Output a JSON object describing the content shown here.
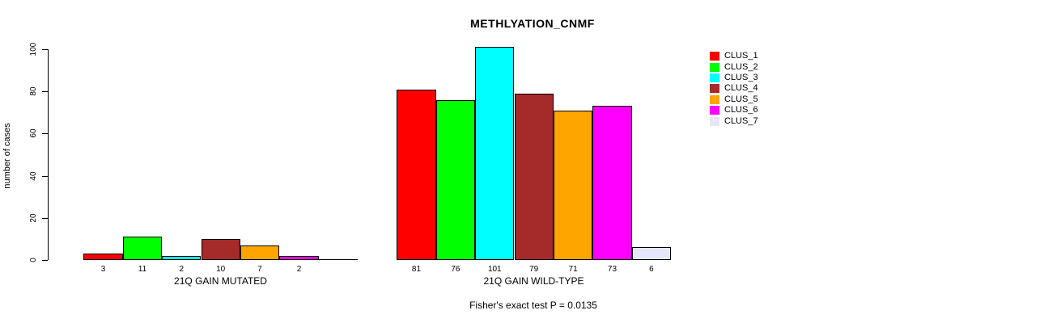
{
  "title": "METHLYATION_CNMF",
  "chart_data": {
    "type": "bar",
    "title": "METHLYATION_CNMF",
    "xlabel": "",
    "ylabel": "number of cases",
    "ylim": [
      0,
      101
    ],
    "yticks": [
      0,
      20,
      40,
      60,
      80,
      100
    ],
    "grid": false,
    "legend_position": "right",
    "legend_labels": [
      "CLUS_1",
      "CLUS_2",
      "CLUS_3",
      "CLUS_4",
      "CLUS_5",
      "CLUS_6",
      "CLUS_7"
    ],
    "colors": [
      "#FF0000",
      "#00FF00",
      "#00FFFF",
      "#A52A2A",
      "#FFA500",
      "#FF00FF",
      "#E6E6FA"
    ],
    "groups": [
      {
        "label": "21Q GAIN MUTATED",
        "values": [
          3,
          11,
          2,
          10,
          7,
          2,
          0
        ],
        "bar_labels": [
          "3",
          "11",
          "2",
          "10",
          "7",
          "2",
          ""
        ]
      },
      {
        "label": "21Q GAIN WILD-TYPE",
        "values": [
          81,
          76,
          101,
          79,
          71,
          73,
          6
        ],
        "bar_labels": [
          "81",
          "76",
          "101",
          "79",
          "71",
          "73",
          "6"
        ]
      }
    ],
    "annotation": "Fisher's exact test P = 0.0135"
  }
}
